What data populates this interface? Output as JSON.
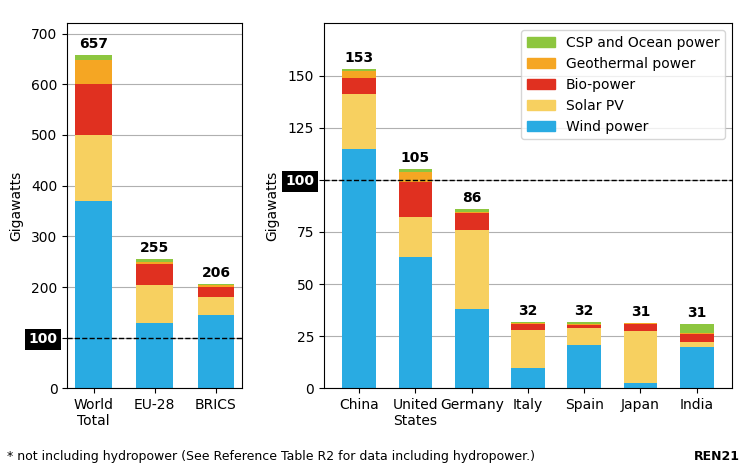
{
  "chart_data": [
    {
      "type": "bar",
      "stacked": true,
      "categories": [
        "World\nTotal",
        "EU-28",
        "BRICS"
      ],
      "series": [
        {
          "name": "Wind power",
          "color": "#29ABE2",
          "values": [
            370,
            130,
            145
          ]
        },
        {
          "name": "Solar PV",
          "color": "#F7D060",
          "values": [
            130,
            75,
            35
          ]
        },
        {
          "name": "Bio-power",
          "color": "#E03020",
          "values": [
            100,
            40,
            20
          ]
        },
        {
          "name": "Geothermal power",
          "color": "#F5A623",
          "values": [
            47,
            5,
            4
          ]
        },
        {
          "name": "CSP and Ocean power",
          "color": "#8DC63F",
          "values": [
            10,
            5,
            2
          ]
        }
      ],
      "totals": [
        657,
        255,
        206
      ],
      "reference_line": 100,
      "ylabel": "Gigawatts",
      "ylim": [
        0,
        720
      ],
      "yticks": [
        0,
        100,
        200,
        300,
        400,
        500,
        600,
        700
      ],
      "grid": true
    },
    {
      "type": "bar",
      "stacked": true,
      "categories": [
        "China",
        "United\nStates",
        "Germany",
        "Italy",
        "Spain",
        "Japan",
        "India"
      ],
      "series": [
        {
          "name": "Wind power",
          "color": "#29ABE2",
          "values": [
            115,
            63,
            38,
            10,
            21,
            2.7,
            20
          ]
        },
        {
          "name": "Solar PV",
          "color": "#F7D060",
          "values": [
            26,
            19,
            38,
            18,
            8,
            25,
            2.5
          ]
        },
        {
          "name": "Bio-power",
          "color": "#E03020",
          "values": [
            8,
            17,
            8,
            3,
            1.5,
            3,
            3.5
          ]
        },
        {
          "name": "Geothermal power",
          "color": "#F5A623",
          "values": [
            3,
            5,
            0.5,
            0.5,
            0.5,
            0.5,
            0.5
          ]
        },
        {
          "name": "CSP and Ocean power",
          "color": "#8DC63F",
          "values": [
            1,
            1,
            1.5,
            0.5,
            1,
            0,
            4.5
          ]
        }
      ],
      "totals": [
        153,
        105,
        86,
        32,
        32,
        31,
        31
      ],
      "reference_line": 100,
      "ylabel": "Gigawatts",
      "ylim": [
        0,
        175
      ],
      "yticks": [
        0,
        25,
        50,
        75,
        100,
        125,
        150
      ],
      "grid": true,
      "legend": "upper right",
      "footnote": "* not including hydropower (See Reference Table R2 for data including hydropower.)",
      "source": "REN21"
    }
  ]
}
